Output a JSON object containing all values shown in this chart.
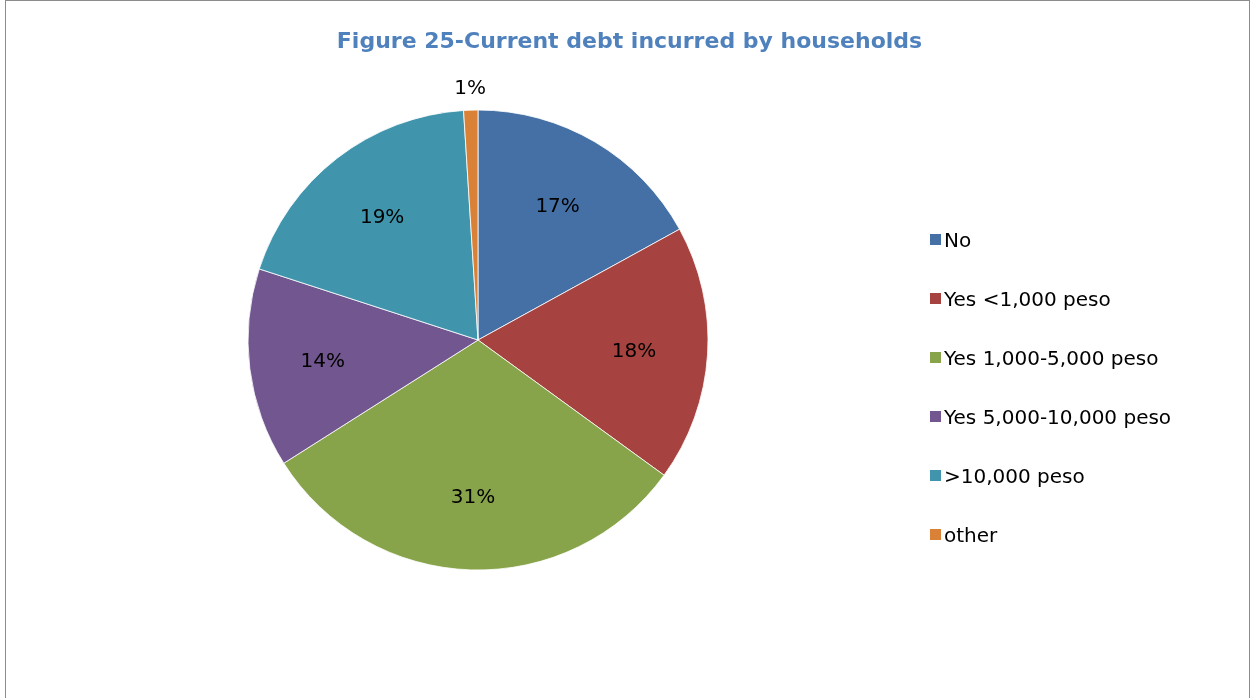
{
  "chart_data": {
    "type": "pie",
    "title": "Figure 25-Current debt incurred by households",
    "categories": [
      "No",
      "Yes <1,000 peso",
      "Yes 1,000-5,000 peso",
      "Yes 5,000-10,000 peso",
      ">10,000 peso",
      "other"
    ],
    "values": [
      17,
      18,
      31,
      14,
      19,
      1
    ],
    "colors": [
      "#4470a6",
      "#a6423f",
      "#88a44b",
      "#72568f",
      "#4095ac",
      "#da8138"
    ],
    "value_labels": [
      "17%",
      "18%",
      "31%",
      "14%",
      "19%",
      "1%"
    ],
    "legend": "right"
  }
}
